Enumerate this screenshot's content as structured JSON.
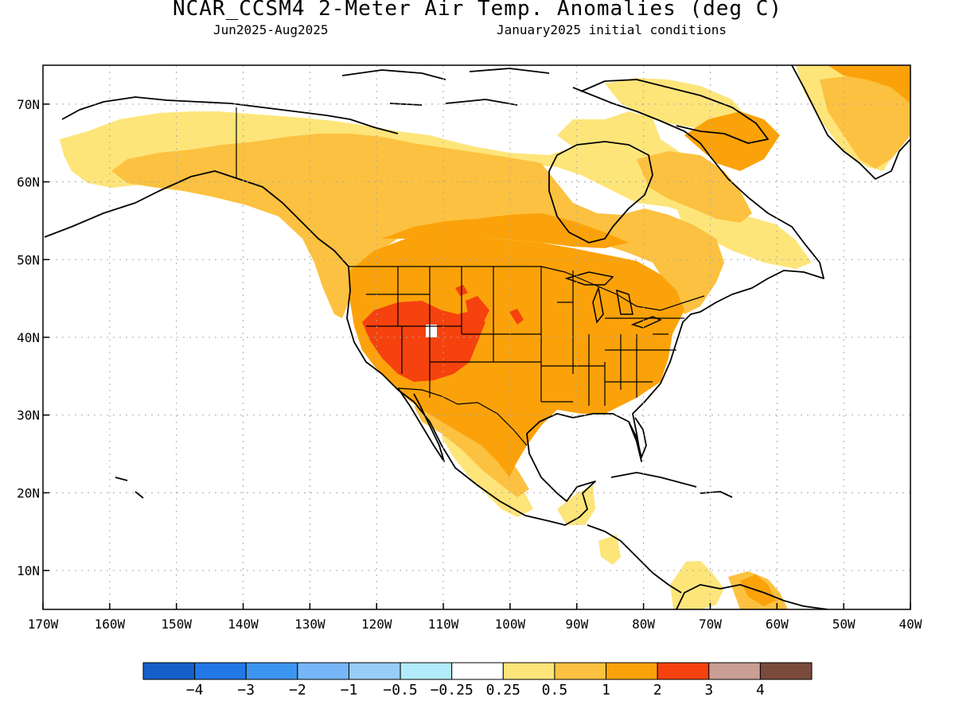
{
  "title": "NCAR_CCSM4 2-Meter Air Temp. Anomalies (deg C)",
  "subtitle_left": "Jun2025-Aug2025",
  "subtitle_right": "January2025 initial conditions",
  "map": {
    "projection": "equirectangular",
    "lon_range": [
      -170,
      -40
    ],
    "lat_range": [
      5,
      75
    ],
    "gridlines": "dotted",
    "lat_tick_labels": [
      {
        "lat": 10,
        "label": "10N"
      },
      {
        "lat": 20,
        "label": "20N"
      },
      {
        "lat": 30,
        "label": "30N"
      },
      {
        "lat": 40,
        "label": "40N"
      },
      {
        "lat": 50,
        "label": "50N"
      },
      {
        "lat": 60,
        "label": "60N"
      },
      {
        "lat": 70,
        "label": "70N"
      }
    ],
    "lon_tick_labels": [
      {
        "lon": -170,
        "label": "170W"
      },
      {
        "lon": -160,
        "label": "160W"
      },
      {
        "lon": -150,
        "label": "150W"
      },
      {
        "lon": -140,
        "label": "140W"
      },
      {
        "lon": -130,
        "label": "130W"
      },
      {
        "lon": -120,
        "label": "120W"
      },
      {
        "lon": -110,
        "label": "110W"
      },
      {
        "lon": -100,
        "label": "100W"
      },
      {
        "lon": -90,
        "label": "90W"
      },
      {
        "lon": -80,
        "label": "80W"
      },
      {
        "lon": -70,
        "label": "70W"
      },
      {
        "lon": -60,
        "label": "60W"
      },
      {
        "lon": -50,
        "label": "50W"
      },
      {
        "lon": -40,
        "label": "40W"
      }
    ],
    "anomaly_colors": {
      "0.25 to 0.5": "#fde57a",
      "0.5 to 1": "#fcc140",
      "1 to 2": "#fba20a",
      "2 to 3": "#f5420e"
    }
  },
  "colorbar": {
    "colors": [
      "#1560c8",
      "#2278e6",
      "#3c95f0",
      "#76b6f7",
      "#98cdf8",
      "#b2ecfa",
      "#ffffff",
      "#fde57a",
      "#fcc140",
      "#fba20a",
      "#f5420e",
      "#c99f94",
      "#7a4a3c"
    ],
    "labels": [
      "-4",
      "-3",
      "-2",
      "-1",
      "-0.5",
      "-0.25",
      "0.25",
      "0.5",
      "1",
      "2",
      "3",
      "4"
    ]
  }
}
